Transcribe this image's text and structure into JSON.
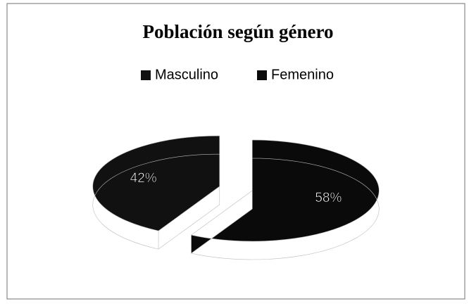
{
  "chart_data": {
    "type": "pie",
    "title": "Población según género",
    "categories": [
      "Masculino",
      "Femenino"
    ],
    "values": [
      42,
      58
    ],
    "value_labels": [
      "42%",
      "58%"
    ],
    "colors": [
      "#111111",
      "#0a0a0a"
    ],
    "legend": "top"
  }
}
